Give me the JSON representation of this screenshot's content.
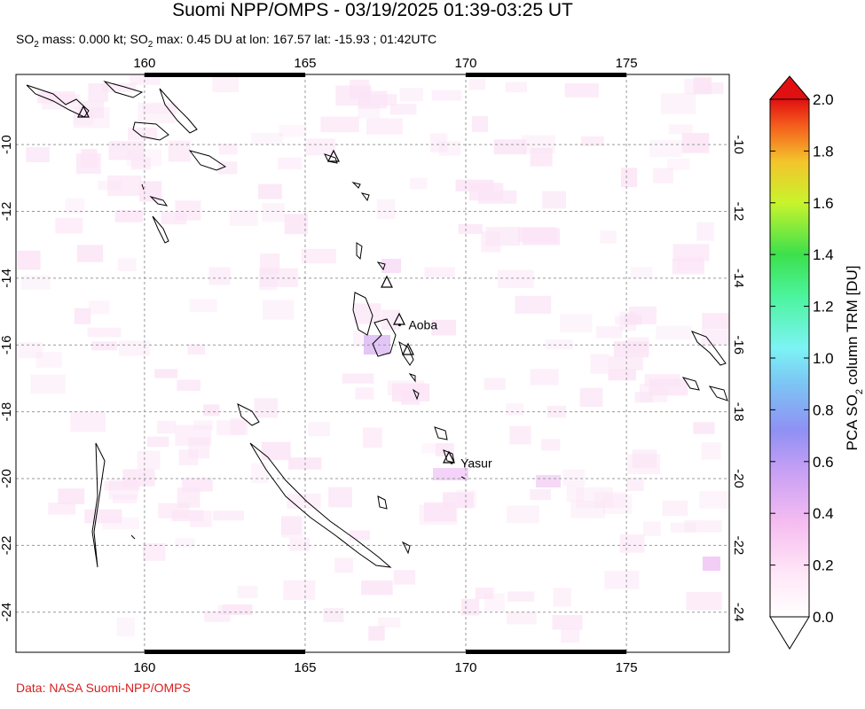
{
  "title": "Suomi NPP/OMPS - 03/19/2025 01:39-03:25 UT",
  "subtitle": {
    "prefix": "SO",
    "sub1": "2",
    "mid": " mass: 0.000 kt; SO",
    "sub2": "2",
    "rest": " max: 0.45 DU at lon: 167.57 lat: -15.93 ; 01:42UTC"
  },
  "credit": "Data: NASA Suomi-NPP/OMPS",
  "map": {
    "lon_range": [
      156,
      178.2
    ],
    "lat_range": [
      -25.2,
      -7.9
    ],
    "lon_ticks": [
      "160",
      "165",
      "170",
      "175"
    ],
    "lat_ticks": [
      "-10",
      "-12",
      "-14",
      "-16",
      "-18",
      "-20",
      "-22",
      "-24"
    ],
    "grid": true
  },
  "places": [
    {
      "name": "Aoba",
      "lon": 167.83,
      "lat": -15.4
    },
    {
      "name": "Yasur",
      "lon": 169.45,
      "lat": -19.53
    }
  ],
  "colorbar": {
    "label_prefix": "PCA SO",
    "label_sub": "2",
    "label_suffix": " column TRM [DU]",
    "ticks": [
      "0.0",
      "0.2",
      "0.4",
      "0.6",
      "0.8",
      "1.0",
      "1.2",
      "1.4",
      "1.6",
      "1.8",
      "2.0"
    ],
    "colors": [
      "#ffffff",
      "#ffd6f4",
      "#e8a8f0",
      "#a48cf4",
      "#7ca4f4",
      "#7cf4f4",
      "#4cf49c",
      "#3ce04c",
      "#a4f42c",
      "#f4f42c",
      "#f4a42c",
      "#f43c1c",
      "#e01010"
    ]
  }
}
